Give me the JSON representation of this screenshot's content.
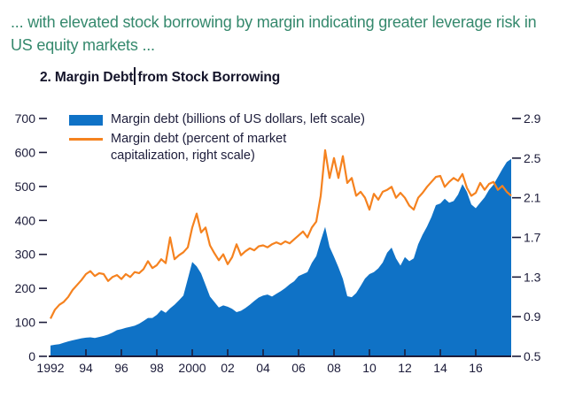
{
  "page": {
    "heading": "... with elevated stock borrowing by margin indicating greater leverage risk in US equity markets ...",
    "panel_title_prefix": "2. Margin Debt",
    "panel_title_suffix": "from Stock Borrowing"
  },
  "legend": {
    "items": [
      {
        "swatch": "area",
        "line1": "Margin debt (billions of US dollars, left scale)",
        "line2": ""
      },
      {
        "swatch": "line",
        "line1": "Margin debt (percent of market",
        "line2": "capitalization, right scale)"
      }
    ]
  },
  "colors": {
    "blue": "#0f72c6",
    "orange": "#f5821f",
    "axis_text": "#1c1c3a",
    "heading_teal": "#35896d",
    "title_ink": "#14142a"
  },
  "chart_data": {
    "type": "combo-area-line",
    "title": "2. Margin Debt from Stock Borrowing",
    "x_start": 1992.0,
    "x_step": 0.25,
    "x_range": [
      1992,
      2018
    ],
    "grid": false,
    "legend_position": "top-left-inside",
    "left_axis": {
      "label": "Margin debt (billions of US dollars)",
      "range": [
        0,
        700
      ],
      "ticks": [
        0,
        100,
        200,
        300,
        400,
        500,
        600,
        700
      ]
    },
    "right_axis": {
      "label": "Margin debt (percent of market capitalization)",
      "range": [
        0.5,
        2.9
      ],
      "ticks": [
        0.5,
        0.9,
        1.3,
        1.7,
        2.1,
        2.5,
        2.9
      ]
    },
    "x_axis": {
      "tick_years": [
        1994,
        1996,
        1998,
        2000,
        2002,
        2004,
        2006,
        2008,
        2010,
        2012,
        2014,
        2016
      ],
      "labels": [
        {
          "year": 1992,
          "text": "1992"
        },
        {
          "year": 1994,
          "text": "94"
        },
        {
          "year": 1996,
          "text": "96"
        },
        {
          "year": 1998,
          "text": "98"
        },
        {
          "year": 2000,
          "text": "2000"
        },
        {
          "year": 2002,
          "text": "02"
        },
        {
          "year": 2004,
          "text": "04"
        },
        {
          "year": 2006,
          "text": "06"
        },
        {
          "year": 2008,
          "text": "08"
        },
        {
          "year": 2010,
          "text": "10"
        },
        {
          "year": 2012,
          "text": "12"
        },
        {
          "year": 2014,
          "text": "14"
        },
        {
          "year": 2016,
          "text": "16"
        }
      ]
    },
    "series": [
      {
        "name": "Margin debt (billions of US dollars, left scale)",
        "type": "area",
        "axis": "left",
        "values": [
          32,
          34,
          36,
          40,
          44,
          47,
          50,
          53,
          55,
          56,
          54,
          57,
          60,
          64,
          70,
          77,
          80,
          84,
          87,
          90,
          96,
          104,
          113,
          113,
          122,
          136,
          128,
          141,
          152,
          165,
          179,
          228,
          278,
          265,
          244,
          210,
          176,
          160,
          144,
          150,
          146,
          140,
          130,
          134,
          142,
          152,
          163,
          173,
          179,
          182,
          176,
          184,
          192,
          201,
          212,
          221,
          236,
          242,
          248,
          275,
          295,
          340,
          381,
          322,
          293,
          262,
          228,
          177,
          174,
          186,
          207,
          229,
          242,
          248,
          259,
          276,
          305,
          320,
          288,
          267,
          292,
          280,
          288,
          330,
          358,
          382,
          410,
          445,
          450,
          464,
          452,
          457,
          476,
          507,
          484,
          447,
          436,
          452,
          468,
          490,
          505,
          528,
          551,
          572,
          581
        ]
      },
      {
        "name": "Margin debt (percent of market capitalization, right scale)",
        "type": "line",
        "axis": "right",
        "values": [
          0.88,
          0.97,
          1.02,
          1.05,
          1.1,
          1.17,
          1.22,
          1.27,
          1.33,
          1.36,
          1.31,
          1.34,
          1.33,
          1.26,
          1.3,
          1.32,
          1.28,
          1.33,
          1.3,
          1.35,
          1.34,
          1.38,
          1.46,
          1.39,
          1.42,
          1.48,
          1.44,
          1.7,
          1.48,
          1.52,
          1.55,
          1.6,
          1.8,
          1.94,
          1.75,
          1.8,
          1.62,
          1.54,
          1.47,
          1.53,
          1.43,
          1.5,
          1.63,
          1.52,
          1.56,
          1.59,
          1.57,
          1.61,
          1.62,
          1.6,
          1.63,
          1.65,
          1.63,
          1.66,
          1.64,
          1.68,
          1.72,
          1.76,
          1.7,
          1.8,
          1.86,
          2.12,
          2.58,
          2.3,
          2.5,
          2.3,
          2.52,
          2.25,
          2.3,
          2.12,
          2.16,
          2.1,
          1.98,
          2.14,
          2.08,
          2.16,
          2.18,
          2.21,
          2.1,
          2.15,
          2.1,
          2.02,
          1.98,
          2.1,
          2.15,
          2.21,
          2.26,
          2.31,
          2.32,
          2.21,
          2.26,
          2.3,
          2.27,
          2.34,
          2.2,
          2.12,
          2.15,
          2.25,
          2.18,
          2.24,
          2.26,
          2.18,
          2.22,
          2.16,
          2.12
        ]
      }
    ]
  }
}
